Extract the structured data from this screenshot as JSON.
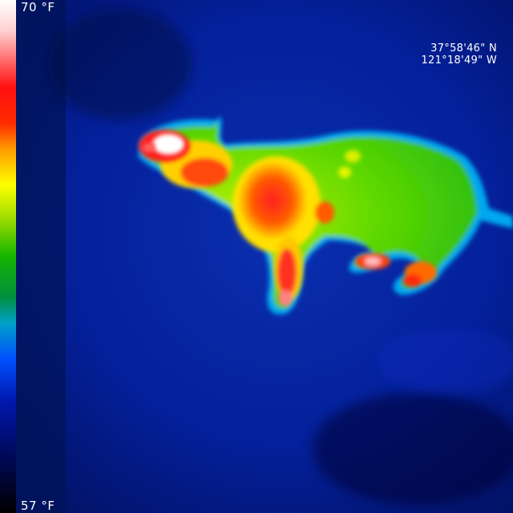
{
  "thermal_view": {
    "subject": "animal-thermal-silhouette",
    "scale": {
      "max_label": "70 °F",
      "min_label": "57 °F",
      "palette": [
        "#ffffff",
        "#ff1010",
        "#ff9a00",
        "#ffff00",
        "#14b400",
        "#00a0c8",
        "#0050ff",
        "#0018b0",
        "#000000"
      ]
    },
    "coordinates": {
      "latitude": "37°58'46\" N",
      "longitude": "121°18'49\" W"
    },
    "background_color": "#021a6b"
  }
}
